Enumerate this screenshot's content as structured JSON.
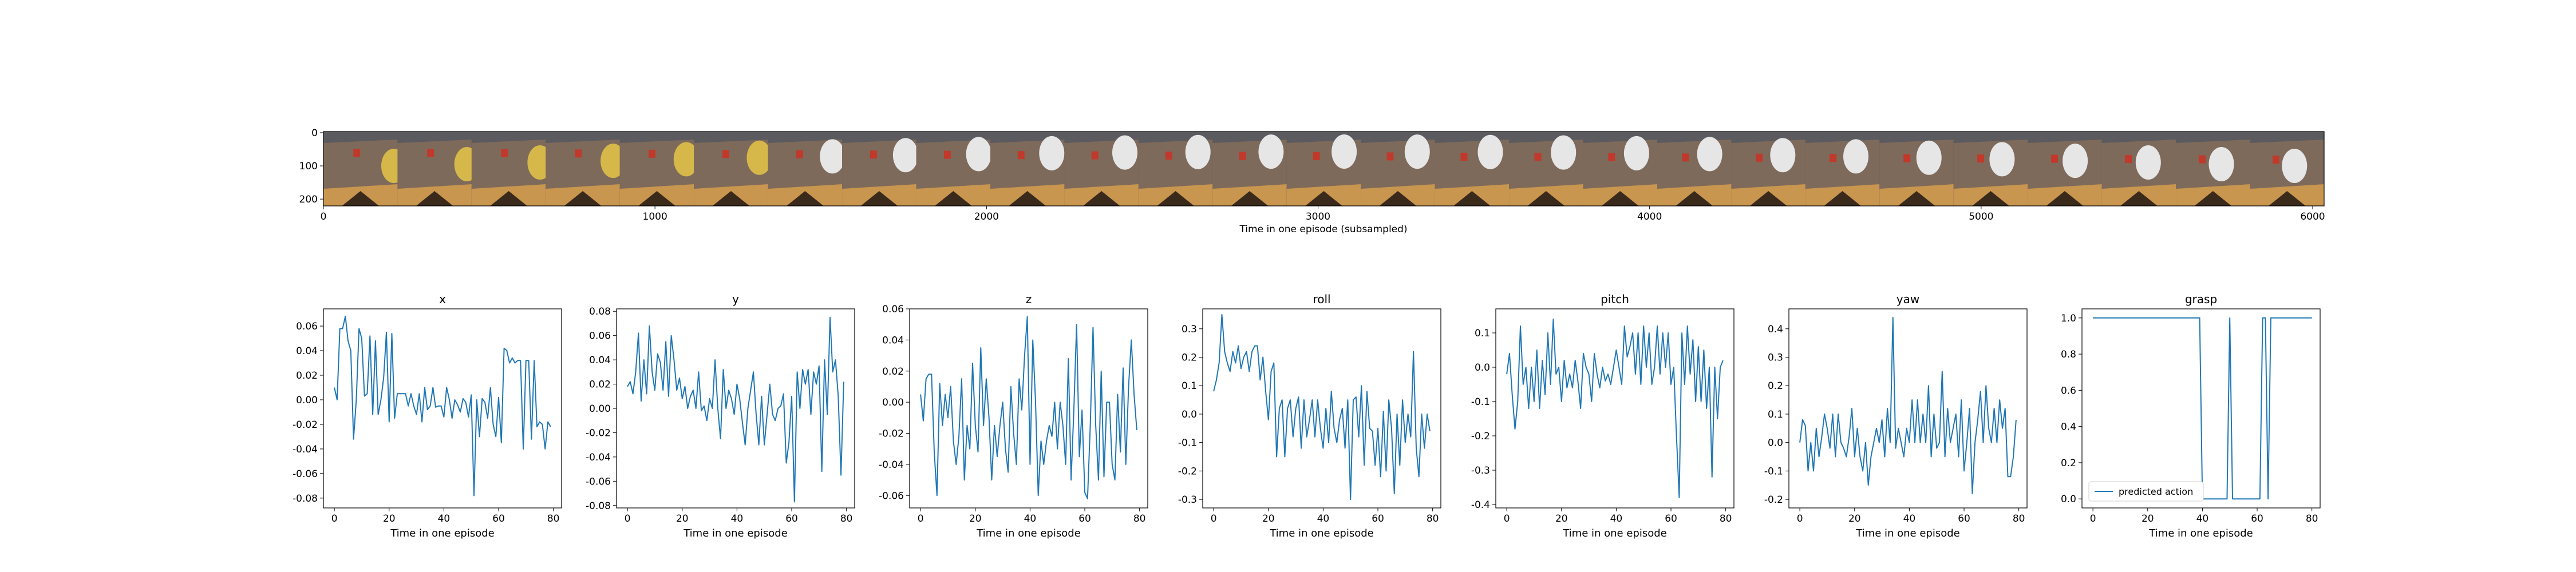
{
  "figure": {
    "strip_xlabel": "Time in one episode (subsampled)",
    "strip_xticks": [
      0,
      1000,
      2000,
      3000,
      4000,
      5000,
      6000
    ],
    "strip_yticks": [
      0,
      100,
      200
    ],
    "strip_frame_count": 27,
    "colors": {
      "line": "#1f77b4",
      "wall": "#5b5a5f",
      "table_top": "#7e6a5b",
      "table_front": "#c9964f",
      "table_shadow": "#3a2a1c",
      "cube": "#c0392b",
      "gripper": "#e6e6e6",
      "gripper_yellow": "#d6b84a"
    }
  },
  "chart_data": [
    {
      "type": "line",
      "title": "x",
      "xlabel": "Time in one episode",
      "ylabel": "",
      "xlim": [
        -4,
        83
      ],
      "ylim": [
        -0.088,
        0.074
      ],
      "xticks": [
        0,
        20,
        40,
        60,
        80
      ],
      "yticks": [
        "-0.08",
        "-0.06",
        "-0.04",
        "-0.02",
        "0.00",
        "0.02",
        "0.04",
        "0.06"
      ],
      "x_start": 0,
      "values": [
        0.01,
        0.0,
        0.058,
        0.058,
        0.068,
        0.048,
        0.04,
        -0.032,
        0.0,
        0.058,
        0.05,
        0.003,
        0.005,
        0.052,
        -0.012,
        0.048,
        -0.012,
        0.0,
        0.018,
        0.055,
        -0.018,
        0.054,
        -0.015,
        0.005,
        0.005,
        0.005,
        0.005,
        -0.005,
        0.005,
        -0.005,
        -0.012,
        0.005,
        -0.018,
        0.01,
        -0.008,
        -0.005,
        0.01,
        -0.006,
        -0.005,
        -0.005,
        -0.014,
        0.01,
        0.0,
        -0.015,
        0.0,
        -0.004,
        -0.01,
        0.001,
        -0.002,
        -0.014,
        0.004,
        -0.078,
        0.0,
        -0.03,
        0.001,
        -0.002,
        -0.015,
        0.01,
        -0.02,
        -0.03,
        0.002,
        -0.035,
        0.042,
        0.04,
        0.03,
        0.034,
        0.03,
        0.032,
        0.032,
        -0.04,
        0.032,
        0.032,
        -0.032,
        0.032,
        -0.022,
        -0.018,
        -0.02,
        -0.04,
        -0.018,
        -0.022
      ]
    },
    {
      "type": "line",
      "title": "y",
      "xlabel": "Time in one episode",
      "ylabel": "",
      "xlim": [
        -4,
        83
      ],
      "ylim": [
        -0.082,
        0.082
      ],
      "xticks": [
        0,
        20,
        40,
        60,
        80
      ],
      "yticks": [
        "-0.08",
        "-0.06",
        "-0.04",
        "-0.02",
        "0.00",
        "0.02",
        "0.04",
        "0.06",
        "0.08"
      ],
      "x_start": 0,
      "values": [
        0.018,
        0.022,
        0.012,
        0.03,
        0.062,
        0.006,
        0.04,
        0.012,
        0.068,
        0.03,
        0.015,
        0.045,
        0.038,
        0.015,
        0.055,
        0.01,
        0.06,
        0.04,
        0.015,
        0.025,
        0.008,
        0.018,
        0.0,
        0.01,
        0.015,
        0.0,
        0.03,
        -0.002,
        0.002,
        -0.01,
        0.008,
        0.0,
        0.04,
        0.0,
        -0.025,
        0.032,
        0.0,
        0.015,
        0.008,
        -0.005,
        0.02,
        0.008,
        -0.012,
        -0.03,
        0.0,
        0.015,
        0.03,
        -0.005,
        -0.03,
        0.01,
        -0.03,
        -0.005,
        0.02,
        -0.005,
        -0.01,
        0.0,
        0.002,
        0.012,
        -0.045,
        -0.028,
        0.01,
        -0.077,
        0.03,
        0.0,
        0.032,
        0.02,
        0.032,
        -0.005,
        0.03,
        0.02,
        0.035,
        -0.052,
        0.04,
        -0.005,
        0.075,
        0.03,
        0.04,
        0.01,
        -0.055,
        0.022
      ]
    },
    {
      "type": "line",
      "title": "z",
      "xlabel": "Time in one episode",
      "ylabel": "",
      "xlim": [
        -4,
        83
      ],
      "ylim": [
        -0.068,
        0.06
      ],
      "xticks": [
        0,
        20,
        40,
        60,
        80
      ],
      "yticks": [
        "-0.06",
        "-0.04",
        "-0.02",
        "0.00",
        "0.02",
        "0.04",
        "0.06"
      ],
      "x_start": 0,
      "values": [
        0.005,
        -0.012,
        0.015,
        0.018,
        0.018,
        -0.032,
        -0.06,
        0.012,
        -0.015,
        0.005,
        -0.01,
        0.01,
        -0.025,
        -0.04,
        -0.022,
        0.015,
        -0.05,
        -0.015,
        -0.03,
        0.025,
        -0.015,
        -0.032,
        0.035,
        -0.015,
        0.015,
        -0.01,
        -0.05,
        -0.015,
        -0.035,
        -0.015,
        0.0,
        -0.03,
        -0.045,
        0.01,
        -0.02,
        -0.04,
        0.015,
        -0.005,
        0.03,
        0.055,
        -0.04,
        0.04,
        0.0,
        -0.06,
        -0.025,
        -0.04,
        -0.025,
        -0.015,
        -0.022,
        0.0,
        -0.03,
        0.0,
        -0.015,
        -0.04,
        0.028,
        -0.05,
        -0.005,
        0.05,
        -0.035,
        -0.005,
        -0.058,
        -0.062,
        -0.015,
        0.048,
        -0.015,
        -0.05,
        0.02,
        -0.048,
        0.0,
        0.0,
        -0.04,
        -0.05,
        0.005,
        -0.032,
        0.022,
        -0.04,
        0.01,
        0.04,
        0.005,
        -0.018
      ]
    },
    {
      "type": "line",
      "title": "roll",
      "xlabel": "Time in one episode",
      "ylabel": "",
      "xlim": [
        -4,
        83
      ],
      "ylim": [
        -0.33,
        0.37
      ],
      "xticks": [
        0,
        20,
        40,
        60,
        80
      ],
      "yticks": [
        "-0.3",
        "-0.2",
        "-0.1",
        "0.0",
        "0.1",
        "0.2",
        "0.3"
      ],
      "x_start": 0,
      "values": [
        0.08,
        0.12,
        0.18,
        0.35,
        0.22,
        0.18,
        0.15,
        0.22,
        0.18,
        0.24,
        0.16,
        0.2,
        0.22,
        0.15,
        0.22,
        0.24,
        0.24,
        0.12,
        0.2,
        0.08,
        -0.02,
        0.15,
        0.18,
        -0.15,
        0.02,
        0.05,
        -0.15,
        0.02,
        0.05,
        -0.08,
        0.02,
        0.06,
        -0.12,
        0.05,
        -0.08,
        -0.02,
        0.05,
        -0.08,
        0.05,
        -0.05,
        -0.12,
        0.02,
        -0.1,
        0.08,
        -0.05,
        -0.1,
        -0.02,
        0.02,
        -0.12,
        0.05,
        -0.3,
        0.05,
        0.06,
        -0.08,
        0.1,
        -0.18,
        0.08,
        -0.05,
        -0.06,
        -0.18,
        -0.05,
        -0.22,
        0.01,
        -0.2,
        0.05,
        -0.05,
        -0.28,
        0.0,
        -0.18,
        0.05,
        -0.1,
        0.0,
        -0.08,
        0.22,
        -0.12,
        -0.22,
        0.0,
        -0.12,
        0.0,
        -0.06
      ]
    },
    {
      "type": "line",
      "title": "pitch",
      "xlabel": "Time in one episode",
      "ylabel": "",
      "xlim": [
        -4,
        83
      ],
      "ylim": [
        -0.41,
        0.17
      ],
      "xticks": [
        0,
        20,
        40,
        60,
        80
      ],
      "yticks": [
        "-0.4",
        "-0.3",
        "-0.2",
        "-0.1",
        "0.0",
        "0.1"
      ],
      "x_start": 0,
      "values": [
        -0.02,
        0.04,
        -0.08,
        -0.18,
        -0.1,
        0.12,
        -0.05,
        0.0,
        -0.12,
        0.0,
        -0.1,
        0.05,
        -0.12,
        0.02,
        -0.08,
        0.1,
        -0.05,
        0.14,
        -0.02,
        0.0,
        -0.1,
        0.02,
        -0.06,
        -0.02,
        -0.06,
        0.02,
        -0.04,
        -0.12,
        0.04,
        0.0,
        -0.02,
        -0.1,
        0.04,
        -0.02,
        -0.06,
        0.0,
        -0.04,
        -0.02,
        -0.05,
        0.0,
        0.05,
        0.0,
        -0.05,
        0.12,
        0.03,
        0.06,
        0.1,
        -0.02,
        0.1,
        -0.05,
        0.12,
        0.0,
        0.1,
        -0.05,
        0.0,
        0.12,
        -0.02,
        0.1,
        0.0,
        0.1,
        -0.05,
        0.0,
        -0.2,
        -0.38,
        0.1,
        -0.05,
        0.12,
        -0.02,
        0.08,
        -0.1,
        0.06,
        -0.1,
        0.05,
        -0.12,
        0.0,
        -0.32,
        0.0,
        -0.15,
        0.0,
        0.02
      ]
    },
    {
      "type": "line",
      "title": "yaw",
      "xlabel": "Time in one episode",
      "ylabel": "",
      "xlim": [
        -4,
        83
      ],
      "ylim": [
        -0.23,
        0.47
      ],
      "xticks": [
        0,
        20,
        40,
        60,
        80
      ],
      "yticks": [
        "-0.2",
        "-0.1",
        "0.0",
        "0.1",
        "0.2",
        "0.3",
        "0.4"
      ],
      "x_start": 0,
      "values": [
        0.0,
        0.08,
        0.06,
        -0.1,
        0.0,
        -0.1,
        0.05,
        -0.05,
        0.02,
        0.1,
        0.05,
        -0.02,
        0.1,
        -0.05,
        0.1,
        0.0,
        -0.02,
        -0.05,
        0.02,
        0.12,
        -0.05,
        0.05,
        -0.05,
        -0.1,
        0.0,
        -0.15,
        -0.05,
        0.0,
        0.05,
        0.0,
        0.08,
        -0.05,
        0.12,
        0.0,
        0.44,
        -0.02,
        0.05,
        0.0,
        -0.05,
        0.05,
        0.0,
        0.15,
        0.0,
        0.15,
        0.0,
        0.1,
        0.0,
        0.2,
        -0.05,
        0.1,
        -0.02,
        0.0,
        0.25,
        -0.05,
        0.12,
        0.0,
        0.05,
        0.1,
        -0.05,
        0.15,
        -0.1,
        0.0,
        0.12,
        -0.18,
        0.0,
        0.08,
        0.18,
        0.0,
        0.2,
        0.05,
        0.0,
        0.12,
        0.0,
        0.15,
        0.05,
        0.12,
        -0.12,
        -0.12,
        -0.05,
        0.08
      ]
    },
    {
      "type": "line",
      "title": "grasp",
      "xlabel": "Time in one episode",
      "ylabel": "",
      "xlim": [
        -4,
        83
      ],
      "ylim": [
        -0.05,
        1.05
      ],
      "xticks": [
        0,
        20,
        40,
        60,
        80
      ],
      "yticks": [
        "0.0",
        "0.2",
        "0.4",
        "0.6",
        "0.8",
        "1.0"
      ],
      "legend": "predicted action",
      "legend_position": "lower-left",
      "x_start": 0,
      "values": [
        1,
        1,
        1,
        1,
        1,
        1,
        1,
        1,
        1,
        1,
        1,
        1,
        1,
        1,
        1,
        1,
        1,
        1,
        1,
        1,
        1,
        1,
        1,
        1,
        1,
        1,
        1,
        1,
        1,
        1,
        1,
        1,
        1,
        1,
        1,
        1,
        1,
        1,
        1,
        1,
        0,
        0,
        0,
        0,
        0,
        0,
        0,
        0,
        0,
        0,
        1,
        0,
        0,
        0,
        0,
        0,
        0,
        0,
        0,
        0,
        0,
        0,
        1,
        1,
        0,
        1,
        1,
        1,
        1,
        1,
        1,
        1,
        1,
        1,
        1,
        1,
        1,
        1,
        1,
        1,
        1
      ]
    }
  ]
}
